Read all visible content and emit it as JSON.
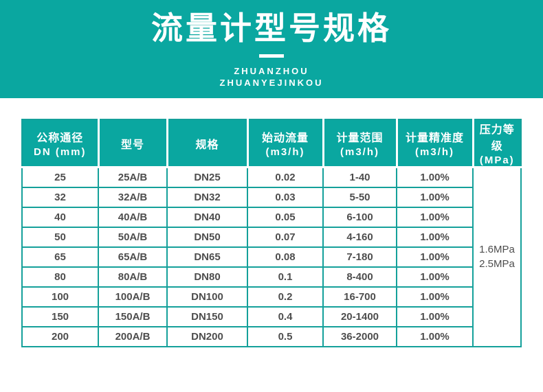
{
  "header": {
    "title": "流量计型号规格",
    "subtitle_line1": "ZHUANZHOU",
    "subtitle_line2": "ZHUANYEJINKOU"
  },
  "colors": {
    "teal": "#0aa7a0",
    "grid": "#14a09a",
    "body_text": "#4d4d4d"
  },
  "table": {
    "columns": [
      {
        "line1": "公称通径",
        "line2": "DN (mm)"
      },
      {
        "line1": "型号",
        "line2": ""
      },
      {
        "line1": "规格",
        "line2": ""
      },
      {
        "line1": "始动流量",
        "line2": "(m3/h)"
      },
      {
        "line1": "计量范围",
        "line2": "(m3/h)"
      },
      {
        "line1": "计量精准度",
        "line2": "(m3/h)"
      },
      {
        "line1": "压力等级",
        "line2": "(MPa)"
      }
    ],
    "rows": [
      [
        "25",
        "25A/B",
        "DN25",
        "0.02",
        "1-40",
        "1.00%"
      ],
      [
        "32",
        "32A/B",
        "DN32",
        "0.03",
        "5-50",
        "1.00%"
      ],
      [
        "40",
        "40A/B",
        "DN40",
        "0.05",
        "6-100",
        "1.00%"
      ],
      [
        "50",
        "50A/B",
        "DN50",
        "0.07",
        "4-160",
        "1.00%"
      ],
      [
        "65",
        "65A/B",
        "DN65",
        "0.08",
        "7-180",
        "1.00%"
      ],
      [
        "80",
        "80A/B",
        "DN80",
        "0.1",
        "8-400",
        "1.00%"
      ],
      [
        "100",
        "100A/B",
        "DN100",
        "0.2",
        "16-700",
        "1.00%"
      ],
      [
        "150",
        "150A/B",
        "DN150",
        "0.4",
        "20-1400",
        "1.00%"
      ],
      [
        "200",
        "200A/B",
        "DN200",
        "0.5",
        "36-2000",
        "1.00%"
      ]
    ],
    "pressure_rating": {
      "line1": "1.6MPa",
      "line2": "2.5MPa"
    }
  }
}
